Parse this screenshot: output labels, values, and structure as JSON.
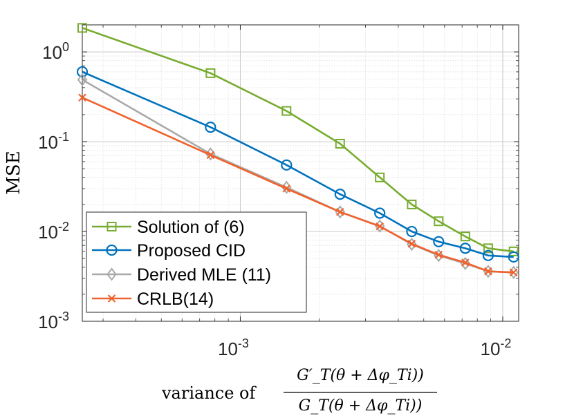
{
  "chart_data": {
    "type": "line",
    "xscale": "log",
    "yscale": "log",
    "xlim": [
      0.00025,
      0.0115
    ],
    "ylim": [
      0.001,
      2.0
    ],
    "grid": true,
    "minor_grid": true,
    "legend_position": "bottom-left",
    "ylabel": "MSE",
    "xlabel": {
      "prefix": "variance of",
      "numerator": "G′_T(θ + Δφ_Ti))",
      "denominator": "G_T(θ + Δφ_Ti))"
    },
    "x_ticks": [
      {
        "value": 0.001,
        "base": "10",
        "exp": "-3"
      },
      {
        "value": 0.01,
        "base": "10",
        "exp": "-2"
      }
    ],
    "y_ticks": [
      {
        "value": 0.001,
        "base": "10",
        "exp": "-3"
      },
      {
        "value": 0.01,
        "base": "10",
        "exp": "-2"
      },
      {
        "value": 0.1,
        "base": "10",
        "exp": "-1"
      },
      {
        "value": 1,
        "base": "10",
        "exp": "0"
      }
    ],
    "x": [
      0.00025,
      0.00077,
      0.0015,
      0.0024,
      0.0034,
      0.0045,
      0.0057,
      0.0072,
      0.0088,
      0.011
    ],
    "series": [
      {
        "name": "Solution of (6)",
        "color": "#77ac30",
        "marker": "square",
        "values": [
          1.85,
          0.58,
          0.22,
          0.095,
          0.04,
          0.02,
          0.013,
          0.0088,
          0.0065,
          0.006
        ]
      },
      {
        "name": "Proposed CID",
        "color": "#0072bd",
        "marker": "circle",
        "values": [
          0.6,
          0.145,
          0.055,
          0.026,
          0.016,
          0.01,
          0.0077,
          0.0065,
          0.0054,
          0.0052
        ]
      },
      {
        "name": "Derived MLE (11)",
        "color": "#a9a9a9",
        "marker": "diamond",
        "values": [
          0.49,
          0.073,
          0.031,
          0.0165,
          0.0115,
          0.0072,
          0.0054,
          0.0044,
          0.0036,
          0.0035
        ]
      },
      {
        "name": "CRLB(14)",
        "color": "#f0622d",
        "marker": "x",
        "values": [
          0.31,
          0.071,
          0.03,
          0.0165,
          0.0114,
          0.0073,
          0.0055,
          0.0045,
          0.0036,
          0.0035
        ]
      }
    ]
  }
}
